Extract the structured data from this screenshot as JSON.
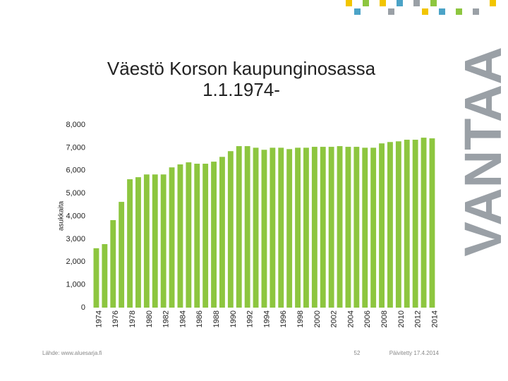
{
  "chart_data": {
    "type": "bar",
    "title": [
      "Väestö Korson kaupunginosassa",
      "1.1.1974-"
    ],
    "y_label": "asukkaita",
    "categories": [
      "1974",
      null,
      "1976",
      null,
      "1978",
      null,
      "1980",
      null,
      "1982",
      null,
      "1984",
      null,
      "1986",
      null,
      "1988",
      null,
      "1990",
      null,
      "1992",
      null,
      "1994",
      null,
      "1996",
      null,
      "1998",
      null,
      "2000",
      null,
      "2002",
      null,
      "2004",
      null,
      "2006",
      null,
      "2008",
      null,
      "2010",
      null,
      "2012",
      null,
      "2014"
    ],
    "values": [
      2600,
      2780,
      3830,
      4630,
      5620,
      5710,
      5830,
      5830,
      5830,
      6140,
      6270,
      6360,
      6300,
      6300,
      6390,
      6600,
      6850,
      7070,
      7070,
      7000,
      6910,
      7000,
      7000,
      6940,
      7000,
      7000,
      7040,
      7040,
      7040,
      7070,
      7040,
      7040,
      7000,
      7000,
      7190,
      7250,
      7280,
      7350,
      7350,
      7440,
      7410
    ],
    "color": "#8dc63f",
    "ylim": [
      0,
      8000
    ],
    "yticks": [
      0,
      {
        "value": 1000,
        "label": "1,000"
      },
      {
        "value": 2000,
        "label": "2,000"
      },
      {
        "value": 3000,
        "label": "3,000"
      },
      {
        "value": 4000,
        "label": "4,000"
      },
      {
        "value": 5000,
        "label": "5,000"
      },
      {
        "value": 6000,
        "label": "6,000"
      },
      {
        "value": 7000,
        "label": "7,000"
      },
      {
        "value": 8000,
        "label": "8,000"
      }
    ],
    "grid": false
  },
  "footer": {
    "source": "Lähde: www.aluesarja.fi",
    "page": "52",
    "updated": "Päivitetty 17.4.2014"
  },
  "logo": "VANTAA"
}
